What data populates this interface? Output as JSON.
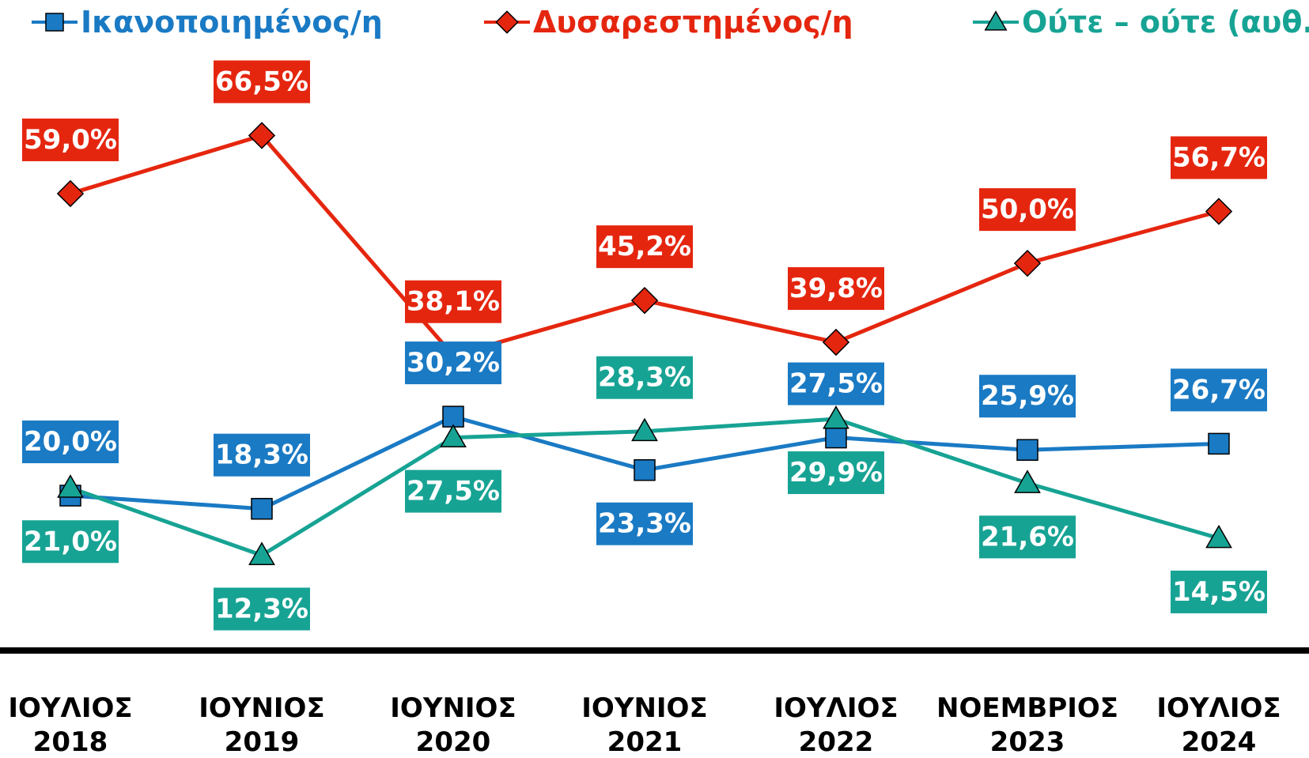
{
  "chart_data": {
    "type": "line",
    "categories": [
      [
        "ΙΟΥΛΙΟΣ",
        "2018"
      ],
      [
        "ΙΟΥΝΙΟΣ",
        "2019"
      ],
      [
        "ΙΟΥΝΙΟΣ",
        "2020"
      ],
      [
        "ΙΟΥΝΙΟΣ",
        "2021"
      ],
      [
        "ΙΟΥΛΙΟΣ",
        "2022"
      ],
      [
        "ΝΟΕΜΒΡΙΟΣ",
        "2023"
      ],
      [
        "ΙΟΥΛΙΟΣ",
        "2024"
      ]
    ],
    "series": [
      {
        "name": "Ικανοποιημένος/η",
        "color": "#1a7ac4",
        "marker": "square",
        "values": [
          20.0,
          18.3,
          30.2,
          23.3,
          27.5,
          25.9,
          26.7
        ],
        "value_labels": [
          "20,0%",
          "18,3%",
          "30,2%",
          "23,3%",
          "27,5%",
          "25,9%",
          "26,7%"
        ]
      },
      {
        "name": "Δυσαρεστημένος/η",
        "color": "#e5260f",
        "marker": "diamond",
        "values": [
          59.0,
          66.5,
          38.1,
          45.2,
          39.8,
          50.0,
          56.7
        ],
        "value_labels": [
          "59,0%",
          "66,5%",
          "38,1%",
          "45,2%",
          "39,8%",
          "50,0%",
          "56,7%"
        ]
      },
      {
        "name": "Ούτε – ούτε (αυθ.)",
        "color": "#17a394",
        "marker": "triangle",
        "values": [
          21.0,
          12.3,
          27.5,
          28.3,
          29.9,
          21.6,
          14.5
        ],
        "value_labels": [
          "21,0%",
          "12,3%",
          "27,5%",
          "28,3%",
          "29,9%",
          "21,6%",
          "14,5%"
        ]
      }
    ],
    "ylim": [
      0,
      84
    ],
    "legend": "top"
  }
}
